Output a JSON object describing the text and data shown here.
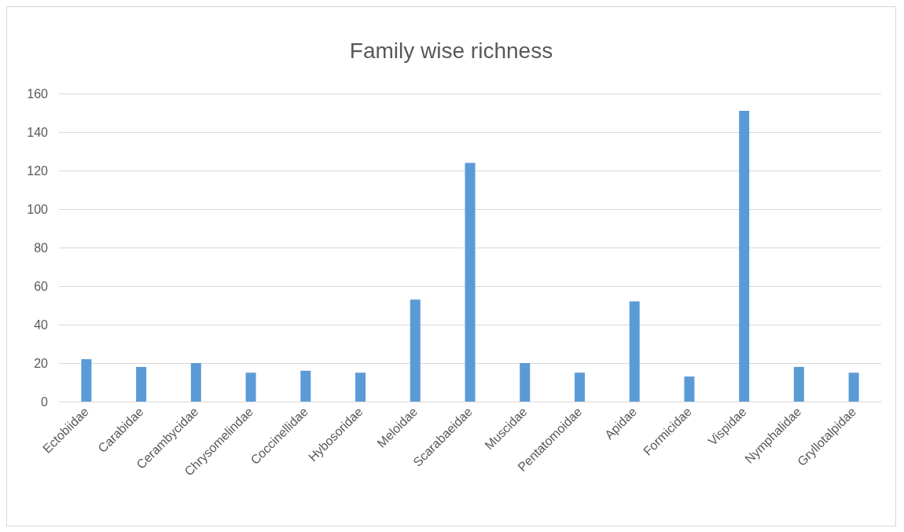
{
  "chart_data": {
    "type": "bar",
    "title": "Family wise richness",
    "categories": [
      "Ectobiidae",
      "Carabidae",
      "Cerambycidae",
      "Chrysomelindae",
      "Coccinellidae",
      "Hybosoridae",
      "Meloidae",
      "Scarabaeidae",
      "Muscidae",
      "Pentatomoidae",
      "Apidae",
      "Formicidae",
      "Vispidae",
      "Nymphalidae",
      "Gryllotalpidae"
    ],
    "values": [
      22,
      18,
      20,
      15,
      16,
      15,
      53,
      124,
      20,
      15,
      52,
      13,
      151,
      18,
      15
    ],
    "color": "#5b9bd5",
    "ylim": [
      0,
      160
    ],
    "yticks": [
      0,
      20,
      40,
      60,
      80,
      100,
      120,
      140,
      160
    ],
    "grid": "y"
  }
}
